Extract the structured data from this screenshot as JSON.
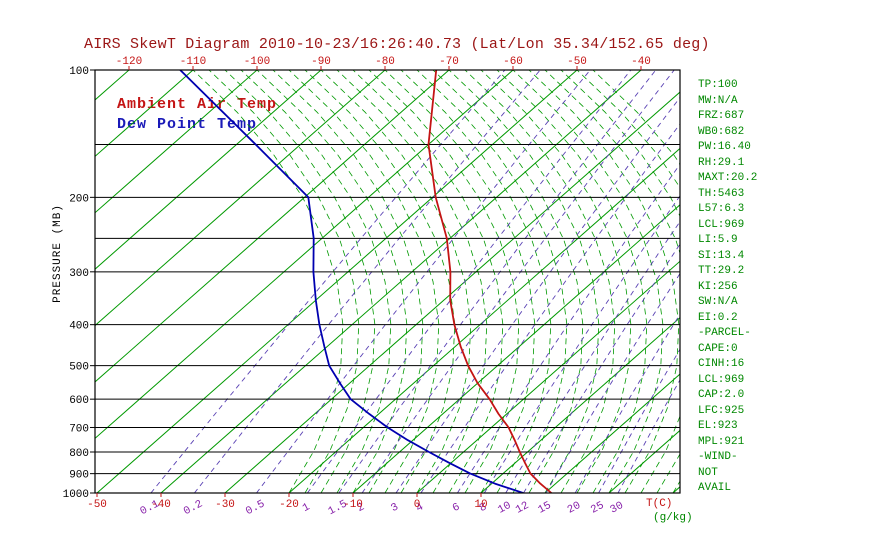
{
  "title": "AIRS SkewT Diagram 2010-10-23/16:26:40.73 (Lat/Lon 35.34/152.65 deg)",
  "legend": {
    "ambient": "Ambient Air Temp",
    "dewpoint": "Dew Point Temp"
  },
  "axes": {
    "pressure_label": "PRESSURE (MB)",
    "pressure_ticks": [
      100,
      200,
      300,
      400,
      500,
      600,
      700,
      800,
      900,
      1000
    ],
    "pressure_minor_lines": [
      150,
      250
    ],
    "top_temp_ticks": [
      -120,
      -110,
      -100,
      -90,
      -80,
      -70,
      -60,
      -50,
      -40
    ],
    "bottom_temp_ticks": [
      -50,
      -40,
      -30,
      -20,
      -10,
      0,
      10
    ],
    "temp_unit_label": "T(C)",
    "mixing_ratio_values": [
      0.1,
      0.2,
      0.5,
      1,
      1.5,
      2,
      3,
      4,
      6,
      8,
      10,
      12,
      15,
      20,
      25,
      30
    ],
    "mixing_ratio_unit_label": "(g/kg)"
  },
  "stats": {
    "items": [
      "TP:100",
      "MW:N/A",
      "FRZ:687",
      "WB0:682",
      "PW:16.40",
      "RH:29.1",
      "MAXT:20.2",
      "TH:5463",
      "L57:6.3",
      "LCL:969",
      "LI:5.9",
      "SI:13.4",
      "TT:29.2",
      "KI:256",
      "SW:N/A",
      "EI:0.2",
      "-PARCEL-",
      "CAPE:0",
      "CINH:16",
      "LCL:969",
      "CAP:2.0",
      "LFC:925",
      "EL:923",
      "MPL:921",
      "-WIND-",
      "NOT",
      "AVAIL"
    ]
  },
  "colors": {
    "title": "#9b1515",
    "red": "#c41414",
    "green": "#009900",
    "stats_green": "#008800",
    "purple_label": "#8822aa",
    "mixing_line": "#5a42b4",
    "dewpoint_blue": "#0000b0",
    "black": "#000000"
  },
  "chart_data": {
    "type": "line",
    "subtype": "skew-t log-p thermodynamic diagram",
    "title": "AIRS SkewT Diagram 2010-10-23/16:26:40.73 (Lat/Lon 35.34/152.65 deg)",
    "xlabel": "T(C)",
    "ylabel": "PRESSURE (MB)",
    "y_scale": "log, inverted (100 mb top, 1000 mb bottom)",
    "pressure_range": [
      100,
      1000
    ],
    "surface_temp_axis_range": [
      -50,
      10
    ],
    "upper_temp_axis_range": [
      -120,
      -40
    ],
    "grid": "green solid isotherms every 10C, green dashed moist adiabats, purple dashed mixing-ratio lines (g/kg), black horizontal isobars",
    "legend_position": "top-left inside plot",
    "points_format": "[pressure_mb, temperature_C]",
    "series": [
      {
        "key": "temperature",
        "name": "Ambient Air Temp",
        "color": "#c41414",
        "points": [
          [
            100,
            -72
          ],
          [
            150,
            -60
          ],
          [
            200,
            -49.5
          ],
          [
            250,
            -40.5
          ],
          [
            300,
            -34
          ],
          [
            350,
            -29
          ],
          [
            400,
            -24
          ],
          [
            450,
            -19.2
          ],
          [
            500,
            -14.6
          ],
          [
            550,
            -10
          ],
          [
            600,
            -5.3
          ],
          [
            650,
            -1.3
          ],
          [
            700,
            2.7
          ],
          [
            750,
            5.9
          ],
          [
            800,
            8.8
          ],
          [
            850,
            11.6
          ],
          [
            900,
            14.3
          ],
          [
            950,
            17.6
          ],
          [
            1000,
            21
          ]
        ]
      },
      {
        "key": "dewpoint",
        "name": "Dew Point Temp",
        "color": "#0000b0",
        "points": [
          [
            100,
            -112
          ],
          [
            150,
            -87
          ],
          [
            200,
            -69.4
          ],
          [
            250,
            -61.3
          ],
          [
            300,
            -55.4
          ],
          [
            350,
            -50
          ],
          [
            400,
            -45.1
          ],
          [
            450,
            -40.5
          ],
          [
            500,
            -36.3
          ],
          [
            550,
            -31.5
          ],
          [
            600,
            -27
          ],
          [
            650,
            -21.5
          ],
          [
            700,
            -16.2
          ],
          [
            750,
            -10.8
          ],
          [
            800,
            -5.4
          ],
          [
            850,
            -0.2
          ],
          [
            900,
            4.9
          ],
          [
            950,
            10.5
          ],
          [
            1000,
            16.6
          ]
        ]
      }
    ]
  }
}
